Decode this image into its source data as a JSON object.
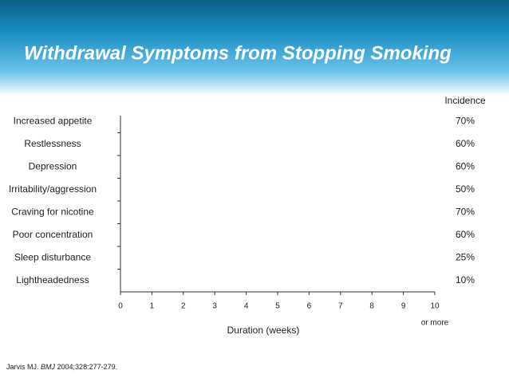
{
  "chart_data": {
    "type": "bar",
    "orientation": "horizontal",
    "title": "Withdrawal Symptoms from Stopping Smoking",
    "categories": [
      "Increased appetite",
      "Restlessness",
      "Depression",
      "Irritability/aggression",
      "Craving for nicotine",
      "Poor concentration",
      "Sleep disturbance",
      "Lightheadedness"
    ],
    "incidence_title": "Incidence",
    "incidence_labels": [
      "70%",
      "60%",
      "60%",
      "50%",
      "70%",
      "60%",
      "25%",
      "10%"
    ],
    "xlabel": "Duration (weeks)",
    "xlim": [
      0,
      10
    ],
    "xticks": [
      0,
      1,
      2,
      3,
      4,
      5,
      6,
      7,
      8,
      9,
      10
    ],
    "xtick_note": "or more",
    "source": {
      "author": "Jarvis MJ.",
      "journal": "BMJ",
      "ref": "2004;328:277-279."
    }
  }
}
